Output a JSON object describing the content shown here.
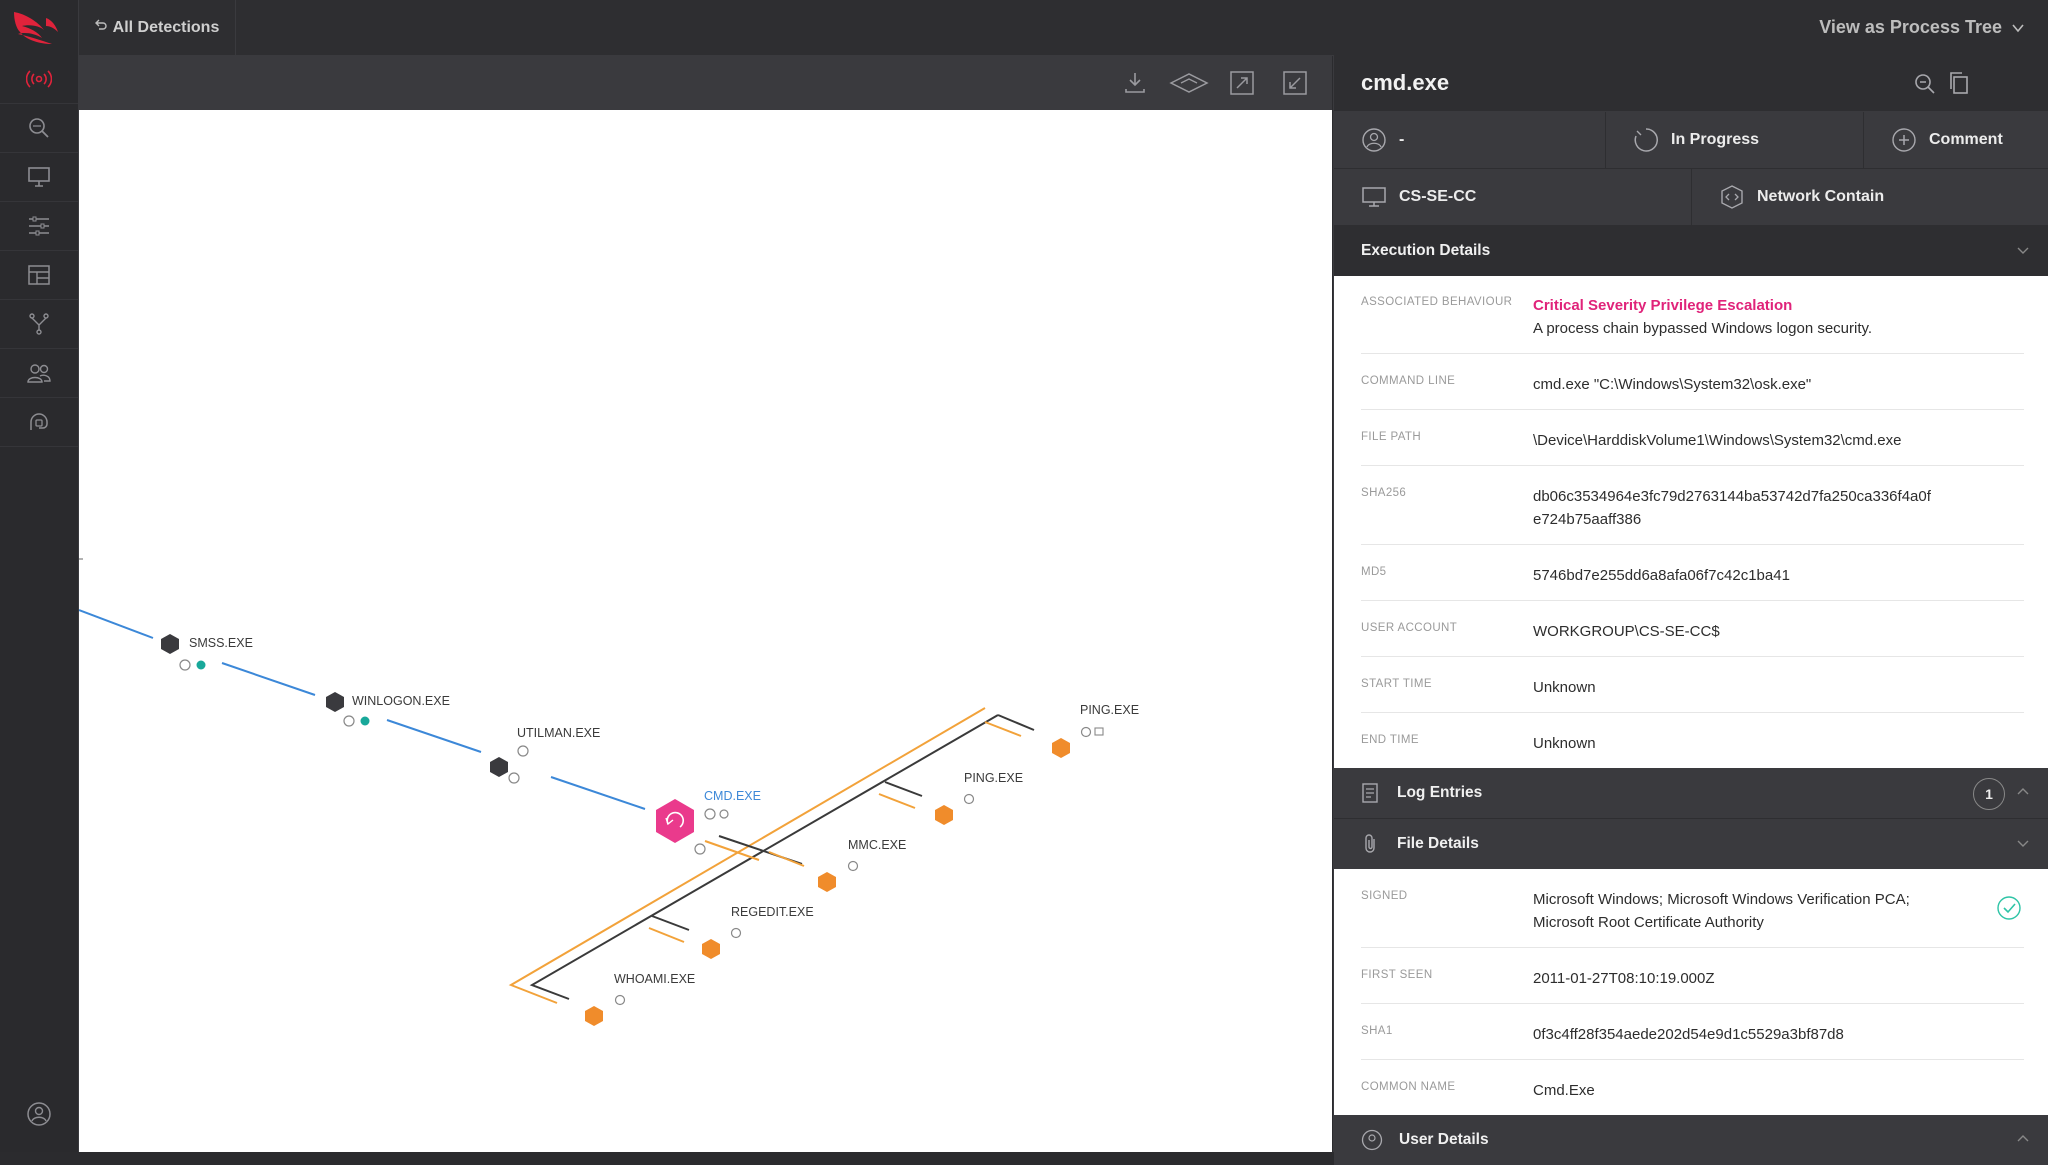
{
  "topbar": {
    "back_label": "All Detections",
    "view_label": "View as Process Tree"
  },
  "sidebar": {
    "items": [
      "activity-icon",
      "search-icon",
      "host-icon",
      "configure-icon",
      "dashboard-icon",
      "fork-icon",
      "users-icon",
      "support-icon"
    ],
    "bottom": "account-icon"
  },
  "graph": {
    "nodes": [
      {
        "label": "SMSS.EXE"
      },
      {
        "label": "WINLOGON.EXE"
      },
      {
        "label": "UTILMAN.EXE"
      },
      {
        "label": "CMD.EXE"
      },
      {
        "label": "PING.EXE"
      },
      {
        "label": "PING.EXE"
      },
      {
        "label": "MMC.EXE"
      },
      {
        "label": "REGEDIT.EXE"
      },
      {
        "label": "WHOAMI.EXE"
      }
    ],
    "colors": {
      "parent": "#3a3a3e",
      "selected": "#ea3a8c",
      "child": "#f08c2b",
      "link_blue": "#3c88d8",
      "link_orange": "#f2a23a",
      "link_dark": "#3a3a3a"
    }
  },
  "panel": {
    "title": "cmd.exe",
    "assignee": "-",
    "status": "In Progress",
    "comment": "Comment",
    "host": "CS-SE-CC",
    "network": "Network Contain",
    "execution_title": "Execution Details",
    "behaviour_key": "ASSOCIATED BEHAVIOUR",
    "behaviour_name": "Critical Severity Privilege Escalation",
    "behaviour_desc": "A process chain bypassed Windows logon security.",
    "cmdline_key": "COMMAND LINE",
    "cmdline": "cmd.exe \"C:\\Windows\\System32\\osk.exe\"",
    "filepath_key": "FILE PATH",
    "filepath": "\\Device\\HarddiskVolume1\\Windows\\System32\\cmd.exe",
    "sha256_key": "SHA256",
    "sha256": "db06c3534964e3fc79d2763144ba53742d7fa250ca336f4a0fe724b75aaff386",
    "md5_key": "MD5",
    "md5": "5746bd7e255dd6a8afa06f7c42c1ba41",
    "user_key": "USER ACCOUNT",
    "user": "WORKGROUP\\CS-SE-CC$",
    "start_key": "START TIME",
    "start": "Unknown",
    "end_key": "END TIME",
    "end": "Unknown",
    "log_title": "Log Entries",
    "log_count": "1",
    "file_title": "File Details",
    "signed_key": "SIGNED",
    "signed": "Microsoft Windows; Microsoft Windows Verification PCA; Microsoft Root Certificate Authority",
    "firstseen_key": "FIRST SEEN",
    "firstseen": "2011-01-27T08:10:19.000Z",
    "sha1_key": "SHA1",
    "sha1": "0f3c4ff28f354aede202d54e9d1c5529a3bf87d8",
    "common_key": "COMMON NAME",
    "common": "Cmd.Exe",
    "user_details_title": "User Details",
    "accent": "#e0237a"
  }
}
